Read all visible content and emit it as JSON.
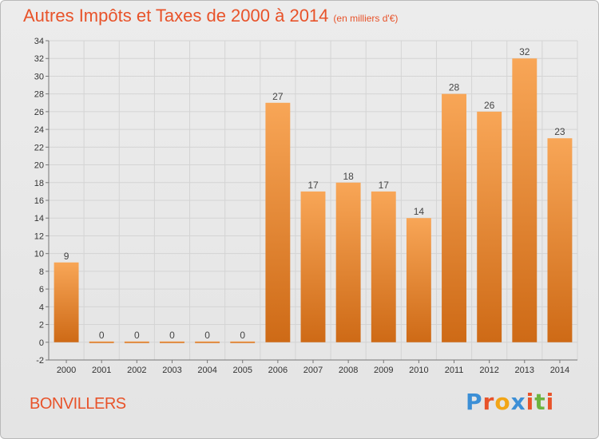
{
  "title": "Autres Impôts et Taxes de 2000 à 2014",
  "subtitle": "(en milliers d'€)",
  "commune": "BONVILLERS",
  "brand": {
    "letters": [
      "P",
      "r",
      "o",
      "x",
      "i",
      "t",
      "i"
    ],
    "colors": [
      "#3c8fd6",
      "#e8532a",
      "#f2a516",
      "#3c8fd6",
      "#e8532a",
      "#6db33f",
      "#e8532a"
    ]
  },
  "colors": {
    "title": "#e8532a",
    "bar_top": "#f8a657",
    "bar_bottom": "#ce6a16",
    "grid": "#d4d4d4"
  },
  "chart_data": {
    "type": "bar",
    "categories": [
      "2000",
      "2001",
      "2002",
      "2003",
      "2004",
      "2005",
      "2006",
      "2007",
      "2008",
      "2009",
      "2010",
      "2011",
      "2012",
      "2013",
      "2014"
    ],
    "values": [
      9,
      0,
      0,
      0,
      0,
      0,
      27,
      17,
      18,
      17,
      14,
      28,
      26,
      32,
      23
    ],
    "ylim": [
      -2,
      34
    ],
    "yticks": [
      -2,
      0,
      2,
      4,
      6,
      8,
      10,
      12,
      14,
      16,
      18,
      20,
      22,
      24,
      26,
      28,
      30,
      32,
      34
    ],
    "grid": true,
    "xlabel": "",
    "ylabel": ""
  }
}
